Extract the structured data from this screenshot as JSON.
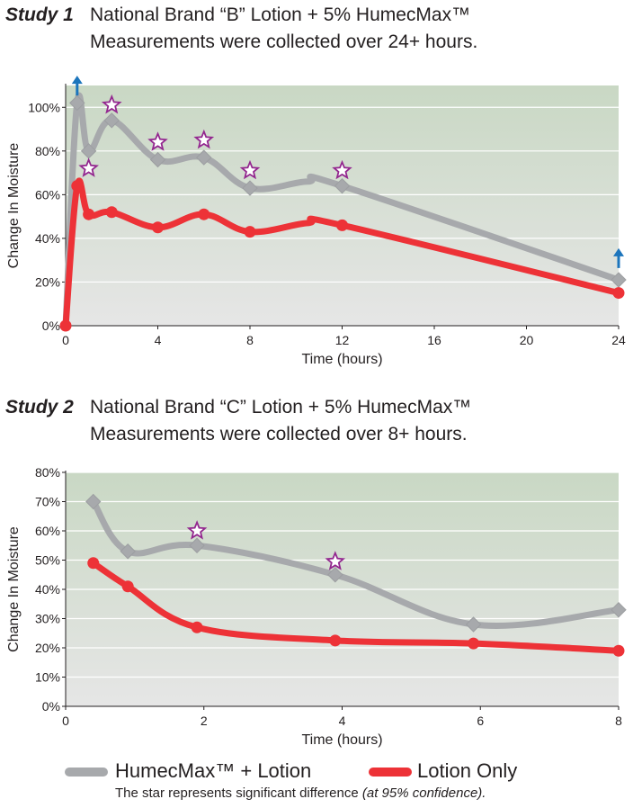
{
  "studies": [
    {
      "label": "Study 1",
      "title": "National Brand “B” Lotion + 5% HumecMax™",
      "subtitle": "Measurements were collected over 24+ hours."
    },
    {
      "label": "Study 2",
      "title": "National Brand “C” Lotion + 5% HumecMax™",
      "subtitle": "Measurements were collected over 8+ hours."
    }
  ],
  "legend": {
    "items": [
      {
        "label": "HumecMax™ + Lotion",
        "color": "#a7a9ac"
      },
      {
        "label": "Lotion Only",
        "color": "#ed3237"
      }
    ],
    "note_main": "The star represents significant difference ",
    "note_italic": "(at 95% confidence)."
  },
  "colors": {
    "plot_top": "#c9d8c4",
    "plot_bottom": "#e6e6e6",
    "grid": "#ffffff",
    "star": "#93278f",
    "arrow": "#1c75bc"
  },
  "chart_data": [
    {
      "type": "line",
      "xlabel": "Time (hours)",
      "ylabel": "Change In Moisture",
      "xlim": [
        0,
        24
      ],
      "ylim": [
        0,
        110
      ],
      "xticks": [
        "0",
        "4",
        "8",
        "12",
        "16",
        "20",
        "24"
      ],
      "yticks": [
        "0%",
        "20%",
        "40%",
        "60%",
        "80%",
        "100%"
      ],
      "x_tick_values": [
        0,
        4,
        8,
        12,
        16,
        20,
        24
      ],
      "y_tick_values": [
        0,
        20,
        40,
        60,
        80,
        100
      ],
      "series": [
        {
          "name": "HumecMax™ + Lotion",
          "x": [
            0,
            0.5,
            1,
            2,
            4,
            6,
            8,
            10.5,
            12,
            24
          ],
          "y": [
            0,
            102,
            80,
            94,
            76,
            77,
            63,
            66,
            64,
            21
          ]
        },
        {
          "name": "Lotion Only",
          "x": [
            0,
            0.5,
            1,
            2,
            4,
            6,
            8,
            10.5,
            12,
            24
          ],
          "y": [
            0,
            64,
            51,
            52,
            45,
            51,
            43,
            47,
            46,
            15
          ]
        }
      ],
      "gray_markers_x": [
        0.5,
        1,
        2,
        4,
        6,
        8,
        12,
        24
      ],
      "red_markers_x": [
        0,
        0.5,
        1,
        2,
        4,
        6,
        8,
        12,
        24
      ],
      "stars": [
        {
          "x": 1,
          "y": 72
        },
        {
          "x": 2,
          "y": 101
        },
        {
          "x": 4,
          "y": 84
        },
        {
          "x": 6,
          "y": 85
        },
        {
          "x": 8,
          "y": 71
        },
        {
          "x": 12,
          "y": 71
        }
      ],
      "arrows": [
        {
          "x": 0.5,
          "y": 112
        },
        {
          "x": 24,
          "y": 33
        }
      ]
    },
    {
      "type": "line",
      "xlabel": "Time (hours)",
      "ylabel": "Change In Moisture",
      "xlim": [
        0,
        8
      ],
      "ylim": [
        0,
        80
      ],
      "xticks": [
        "0",
        "2",
        "4",
        "6",
        "8"
      ],
      "yticks": [
        "0%",
        "10%",
        "20%",
        "30%",
        "40%",
        "50%",
        "60%",
        "70%",
        "80%"
      ],
      "x_tick_values": [
        0,
        2,
        4,
        6,
        8
      ],
      "y_tick_values": [
        0,
        10,
        20,
        30,
        40,
        50,
        60,
        70,
        80
      ],
      "series": [
        {
          "name": "HumecMax™ + Lotion",
          "x": [
            0.4,
            0.9,
            1.9,
            3.9,
            5.9,
            8
          ],
          "y": [
            70,
            53,
            55,
            45,
            28,
            33
          ]
        },
        {
          "name": "Lotion Only",
          "x": [
            0.4,
            0.9,
            1.9,
            3.9,
            5.9,
            8
          ],
          "y": [
            49,
            41,
            27,
            22.5,
            21.5,
            19
          ]
        }
      ],
      "gray_markers_x": [
        0.4,
        0.9,
        1.9,
        3.9,
        5.9,
        8
      ],
      "red_markers_x": [
        0.4,
        0.9,
        1.9,
        3.9,
        5.9,
        8
      ],
      "stars": [
        {
          "x": 1.9,
          "y": 60
        },
        {
          "x": 3.9,
          "y": 49.5
        }
      ],
      "arrows": []
    }
  ]
}
